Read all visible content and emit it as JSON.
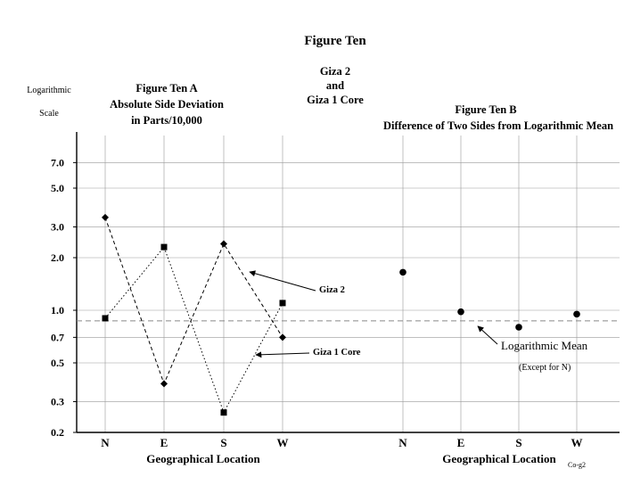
{
  "figure": {
    "title": "Figure Ten",
    "subtitle_lines": [
      "Giza 2",
      "and",
      "Giza 1 Core"
    ],
    "y_axis_label_lines": [
      "Logarithmic",
      "Scale"
    ],
    "code": "Co-g2"
  },
  "chart_data": [
    {
      "type": "line",
      "title_lines": [
        "Figure Ten A",
        "Absolute Side Deviation",
        "in Parts/10,000"
      ],
      "xlabel": "Geographical Location",
      "ylabel": "Logarithmic Scale",
      "yscale": "log",
      "ylim": [
        0.2,
        10
      ],
      "yticks": [
        0.2,
        0.3,
        0.5,
        0.7,
        1.0,
        2.0,
        3.0,
        5.0,
        7.0
      ],
      "ytick_labels": [
        "0.2",
        "0.3",
        "0.5",
        "0.7",
        "1.0",
        "2.0",
        "3.0",
        "5.0",
        "7.0"
      ],
      "categories": [
        "N",
        "E",
        "S",
        "W"
      ],
      "grid": true,
      "series": [
        {
          "name": "Giza 2",
          "values": [
            3.4,
            0.38,
            2.4,
            0.7
          ],
          "marker": "diamond",
          "line": "dashed"
        },
        {
          "name": "Giza 1 Core",
          "values": [
            0.9,
            2.3,
            0.26,
            1.1
          ],
          "marker": "square",
          "line": "dotted"
        }
      ]
    },
    {
      "type": "scatter",
      "title_lines": [
        "Figure Ten B",
        "Difference of Two Sides from Logarithmic Mean"
      ],
      "xlabel": "Geographical Location",
      "yscale": "log",
      "ylim": [
        0.2,
        10
      ],
      "categories": [
        "N",
        "E",
        "S",
        "W"
      ],
      "grid": true,
      "series": [
        {
          "values": [
            1.65,
            0.98,
            0.8,
            0.95
          ],
          "marker": "circle"
        }
      ],
      "reference_line": {
        "value": 0.87,
        "style": "dashed",
        "label": "Logarithmic Mean",
        "note": "(Except for N)"
      }
    }
  ],
  "colors": {
    "ink": "#000000",
    "grid": "#999999",
    "mean_line": "#888888"
  }
}
